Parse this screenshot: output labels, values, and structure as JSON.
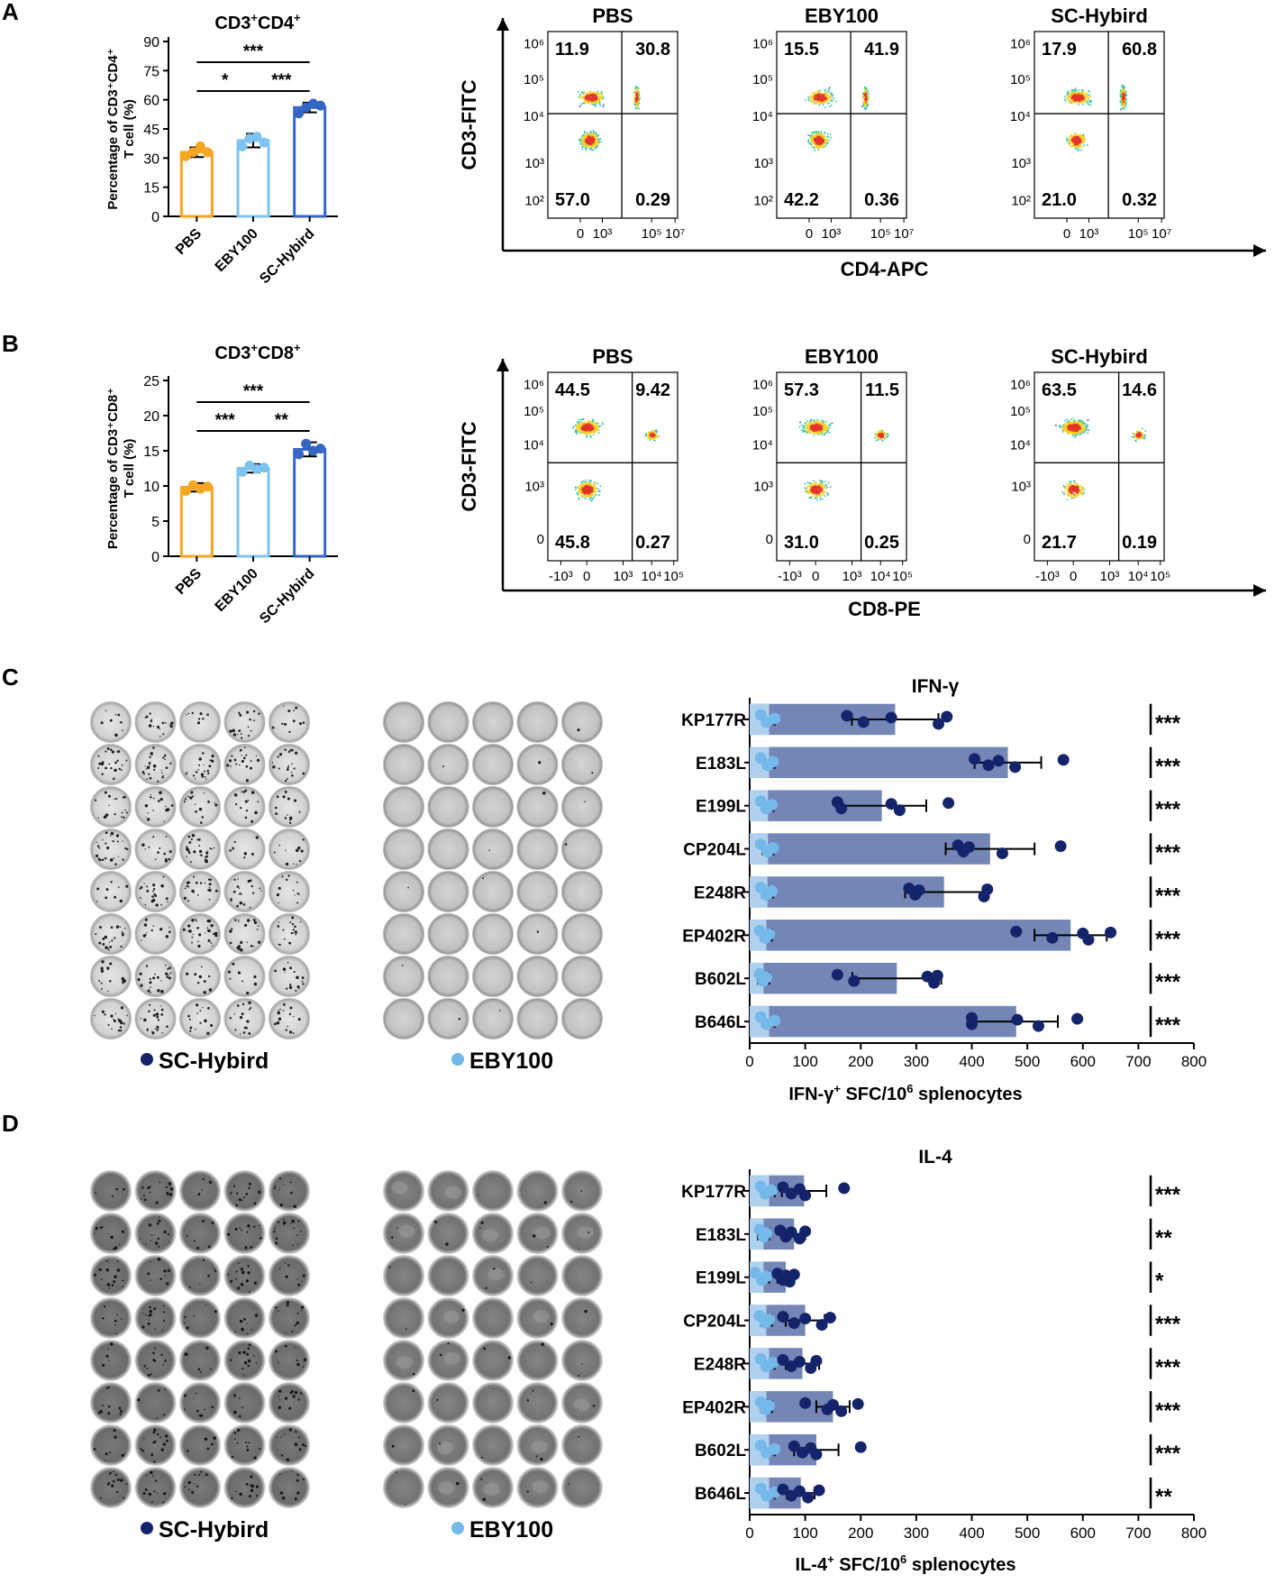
{
  "panels": {
    "A": "A",
    "B": "B",
    "C": "C",
    "D": "D"
  },
  "colors": {
    "pbs": "#f5a623",
    "eby": "#7ec3f0",
    "sc": "#3566c4",
    "dark_dot": "#14246b",
    "light_dot": "#74b9ea",
    "bar_fill": "#7386b6",
    "bar_light": "#b7d9f4",
    "flow_low": "#2f3fb8",
    "flow_mid": "#2ec4b0",
    "flow_hi": "#f2d12b",
    "flow_peak": "#e4352a"
  },
  "chart_data": [
    {
      "id": "A_bar",
      "type": "bar",
      "title_base": "CD3",
      "title_sup1": "+",
      "title_mid": "CD4",
      "title_sup2": "+",
      "ylabel_line1": "Percentage of CD3⁺CD4⁺",
      "ylabel_line2": "T cell (%)",
      "categories": [
        "PBS",
        "EBY100",
        "SC-Hybird"
      ],
      "values": [
        33,
        39,
        56
      ],
      "errors": [
        2.5,
        3.5,
        2.5
      ],
      "points": [
        [
          31,
          33,
          36,
          33
        ],
        [
          36,
          40,
          41,
          38
        ],
        [
          53,
          56,
          58,
          57
        ]
      ],
      "ylim": [
        0,
        90
      ],
      "ticks": [
        0,
        15,
        30,
        45,
        60,
        75,
        90
      ],
      "significance": [
        {
          "from": 0,
          "to": 2,
          "level": 0,
          "label": "***"
        },
        {
          "from": 0,
          "to": 1,
          "level": 1,
          "label": "*"
        },
        {
          "from": 1,
          "to": 2,
          "level": 1,
          "label": "***"
        }
      ]
    },
    {
      "id": "B_bar",
      "type": "bar",
      "title_base": "CD3",
      "title_sup1": "+",
      "title_mid": "CD8",
      "title_sup2": "+",
      "ylabel_line1": "Percentage of CD3⁺CD8⁺",
      "ylabel_line2": "T cell (%)",
      "categories": [
        "PBS",
        "EBY100",
        "SC-Hybird"
      ],
      "values": [
        9.8,
        12.5,
        15.2
      ],
      "errors": [
        0.6,
        0.6,
        1.0
      ],
      "points": [
        [
          9.3,
          10.1,
          9.6,
          9.9
        ],
        [
          12.0,
          12.9,
          12.4,
          12.6
        ],
        [
          14.5,
          16.0,
          15.0,
          15.3
        ]
      ],
      "ylim": [
        0,
        25
      ],
      "ticks": [
        0,
        5,
        10,
        15,
        20,
        25
      ],
      "significance": [
        {
          "from": 0,
          "to": 2,
          "level": 0,
          "label": "***"
        },
        {
          "from": 0,
          "to": 1,
          "level": 1,
          "label": "***"
        },
        {
          "from": 1,
          "to": 2,
          "level": 1,
          "label": "**"
        }
      ]
    },
    {
      "id": "A_flow",
      "type": "scatter",
      "ylabel": "CD3-FITC",
      "xlabel": "CD4-APC",
      "plots": [
        {
          "title": "PBS",
          "q_ul": "11.9",
          "q_ur": "30.8",
          "q_ll": "57.0",
          "q_lr": "0.29"
        },
        {
          "title": "EBY100",
          "q_ul": "15.5",
          "q_ur": "41.9",
          "q_ll": "42.2",
          "q_lr": "0.36"
        },
        {
          "title": "SC-Hybird",
          "q_ul": "17.9",
          "q_ur": "60.8",
          "q_ll": "21.0",
          "q_lr": "0.32"
        }
      ],
      "yticks": [
        "10⁶",
        "10⁵",
        "10⁴",
        "10³",
        "10²"
      ],
      "xticks": [
        "0",
        "10³",
        "10⁵",
        "10⁷"
      ]
    },
    {
      "id": "B_flow",
      "type": "scatter",
      "ylabel": "CD3-FITC",
      "xlabel": "CD8-PE",
      "plots": [
        {
          "title": "PBS",
          "q_ul": "44.5",
          "q_ur": "9.42",
          "q_ll": "45.8",
          "q_lr": "0.27"
        },
        {
          "title": "EBY100",
          "q_ul": "57.3",
          "q_ur": "11.5",
          "q_ll": "31.0",
          "q_lr": "0.25"
        },
        {
          "title": "SC-Hybird",
          "q_ul": "63.5",
          "q_ur": "14.6",
          "q_ll": "21.7",
          "q_lr": "0.19"
        }
      ],
      "yticks": [
        "10⁶",
        "10⁵",
        "10⁴",
        "10³",
        "0"
      ],
      "xticks": [
        "-10³",
        "0",
        "10³",
        "10⁴",
        "10⁵"
      ]
    },
    {
      "id": "C_bar",
      "type": "bar",
      "orientation": "horizontal",
      "title": "IFN-γ",
      "xlabel": "IFN-γ⁺ SFC/10⁶ splenocytes",
      "categories": [
        "KP177R",
        "E183L",
        "E199L",
        "CP204L",
        "E248R",
        "EP402R",
        "B602L",
        "B646L"
      ],
      "values": [
        262,
        465,
        238,
        433,
        350,
        578,
        265,
        480
      ],
      "errors": [
        78,
        60,
        80,
        80,
        70,
        65,
        80,
        75
      ],
      "points": [
        [
          175,
          205,
          255,
          340,
          355
        ],
        [
          405,
          430,
          448,
          478,
          565
        ],
        [
          158,
          165,
          255,
          270,
          358
        ],
        [
          375,
          385,
          395,
          455,
          560
        ],
        [
          287,
          298,
          305,
          422,
          428
        ],
        [
          480,
          545,
          600,
          610,
          650
        ],
        [
          158,
          188,
          320,
          332,
          338
        ],
        [
          400,
          400,
          482,
          520,
          590
        ]
      ],
      "eby_values": [
        35,
        35,
        33,
        33,
        32,
        30,
        25,
        35
      ],
      "eby_points": [
        [
          20,
          30,
          45
        ],
        [
          20,
          32,
          42
        ],
        [
          20,
          30,
          40
        ],
        [
          20,
          32,
          42
        ],
        [
          20,
          30,
          40
        ],
        [
          18,
          28,
          35
        ],
        [
          18,
          24,
          30
        ],
        [
          20,
          30,
          45
        ]
      ],
      "xlim": [
        0,
        800
      ],
      "xticks": [
        0,
        100,
        200,
        300,
        400,
        500,
        600,
        700,
        800
      ],
      "significance": [
        "***",
        "***",
        "***",
        "***",
        "***",
        "***",
        "***",
        "***"
      ]
    },
    {
      "id": "D_bar",
      "type": "bar",
      "orientation": "horizontal",
      "title": "IL-4",
      "xlabel": "IL-4⁺ SFC/10⁶ splenocytes",
      "categories": [
        "KP177R",
        "E183L",
        "E199L",
        "CP204L",
        "E248R",
        "EP402R",
        "B602L",
        "B646L"
      ],
      "values": [
        98,
        80,
        65,
        100,
        95,
        150,
        120,
        92
      ],
      "errors": [
        40,
        20,
        15,
        35,
        30,
        30,
        40,
        25
      ],
      "points": [
        [
          60,
          75,
          90,
          100,
          170
        ],
        [
          55,
          65,
          75,
          90,
          100
        ],
        [
          50,
          60,
          65,
          72,
          80
        ],
        [
          60,
          80,
          100,
          130,
          145
        ],
        [
          60,
          75,
          90,
          110,
          120
        ],
        [
          100,
          140,
          150,
          165,
          195
        ],
        [
          80,
          95,
          110,
          120,
          200
        ],
        [
          60,
          75,
          90,
          105,
          125
        ]
      ],
      "eby_values": [
        35,
        25,
        25,
        30,
        35,
        30,
        35,
        35
      ],
      "eby_points": [
        [
          20,
          28,
          40
        ],
        [
          18,
          25,
          30
        ],
        [
          10,
          22,
          30
        ],
        [
          18,
          28,
          35
        ],
        [
          20,
          30,
          42
        ],
        [
          20,
          28,
          35
        ],
        [
          20,
          30,
          45
        ],
        [
          20,
          30,
          45
        ]
      ],
      "xlim": [
        0,
        800
      ],
      "xticks": [
        0,
        100,
        200,
        300,
        400,
        500,
        600,
        700,
        800
      ],
      "significance": [
        "***",
        "**",
        "*",
        "***",
        "***",
        "***",
        "***",
        "**"
      ]
    }
  ],
  "elispot": {
    "sc_label": "SC-Hybird",
    "eby_label": "EBY100"
  },
  "axis_pieces": {
    "ifn_a": "IFN-γ",
    "ifn_b": " SFC/10",
    "ifn_c": " splenocytes",
    "il4_a": "IL-4",
    "il4_b": " SFC/10",
    "il4_c": " splenocytes",
    "sup_plus": "+",
    "sup_six": "6"
  }
}
